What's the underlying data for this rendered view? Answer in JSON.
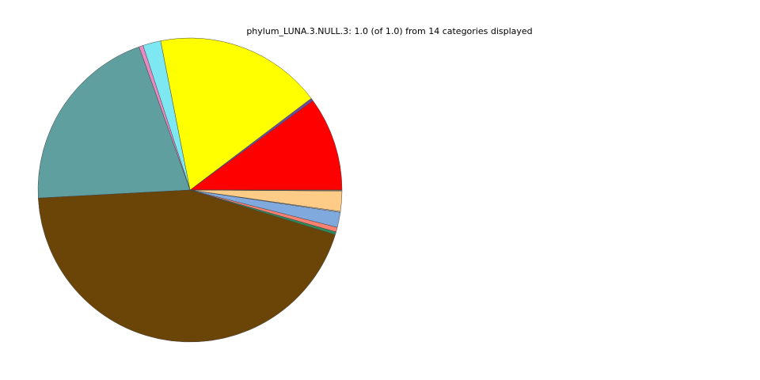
{
  "chart_data": {
    "type": "pie",
    "title": "phylum_LUNA.3.NULL.3: 1.0 (of 1.0) from 14 categories displayed",
    "start_angle_deg": 0,
    "direction": "counterclockwise",
    "legend": "none",
    "slices": [
      {
        "value": 0.1,
        "color": "#ff0000"
      },
      {
        "value": 0.003,
        "color": "#6b4c9a"
      },
      {
        "value": 0.178,
        "color": "#ffff00"
      },
      {
        "value": 0.019,
        "color": "#7ee8f2"
      },
      {
        "value": 0.0045,
        "color": "#e78ac3"
      },
      {
        "value": 0.204,
        "color": "#5f9f9f"
      },
      {
        "value": 0.444,
        "color": "#6b4408"
      },
      {
        "value": 0.003,
        "color": "#2e8b57"
      },
      {
        "value": 0.005,
        "color": "#fa8072"
      },
      {
        "value": 0.016,
        "color": "#80aadd"
      },
      {
        "value": 0.001,
        "color": "#d8d8d8"
      },
      {
        "value": 0.0215,
        "color": "#ffcc88"
      },
      {
        "value": 0.0005,
        "color": "#bdbdbd"
      },
      {
        "value": 0.0005,
        "color": "#f5deb3"
      }
    ]
  }
}
